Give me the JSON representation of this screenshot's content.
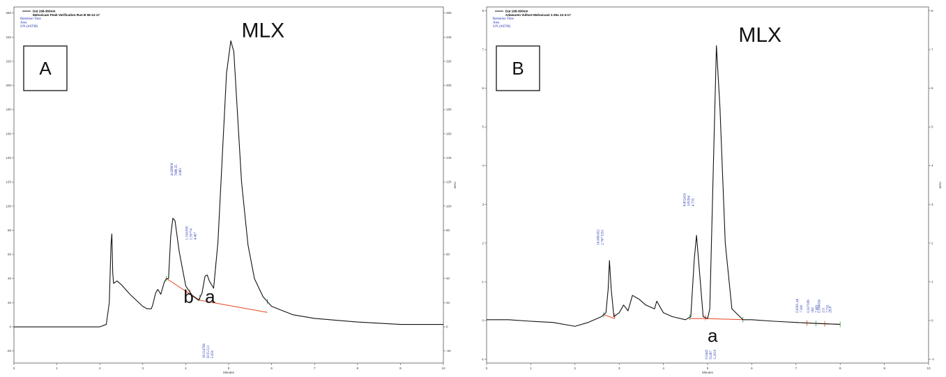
{
  "chart_data": [
    {
      "type": "line",
      "panel_label": "A",
      "legend": {
        "lines": [
          "Dat 168-360nm",
          "Meloxicam Peak Verification Run B 06-12-17"
        ],
        "sub": [
          "Retention Time",
          "Area",
          "S/N (ASTM)"
        ]
      },
      "xlabel": "Minutes",
      "ylabel": "mAU",
      "xlim": [
        0,
        10
      ],
      "ylim": [
        -30,
        265
      ],
      "xticks": [
        "0",
        "1",
        "2",
        "3",
        "4",
        "5",
        "6",
        "7",
        "8",
        "9",
        "10"
      ],
      "yticks": [
        "-20",
        "0",
        "20",
        "40",
        "60",
        "80",
        "100",
        "120",
        "140",
        "160",
        "180",
        "200",
        "220",
        "240",
        "260"
      ],
      "series": [
        {
          "values": [
            [
              0,
              0
            ],
            [
              1,
              0
            ],
            [
              2,
              0
            ],
            [
              2.15,
              2
            ],
            [
              2.22,
              20
            ],
            [
              2.26,
              68
            ],
            [
              2.28,
              77
            ],
            [
              2.3,
              45
            ],
            [
              2.32,
              36
            ],
            [
              2.4,
              38
            ],
            [
              2.5,
              35
            ],
            [
              2.7,
              27
            ],
            [
              3.0,
              17
            ],
            [
              3.1,
              15
            ],
            [
              3.2,
              15
            ],
            [
              3.23,
              18
            ],
            [
              3.3,
              28
            ],
            [
              3.35,
              31
            ],
            [
              3.42,
              27
            ],
            [
              3.5,
              37
            ],
            [
              3.55,
              40
            ],
            [
              3.6,
              40
            ],
            [
              3.65,
              75
            ],
            [
              3.7,
              90
            ],
            [
              3.75,
              88
            ],
            [
              3.85,
              62
            ],
            [
              4.0,
              34
            ],
            [
              4.15,
              26
            ],
            [
              4.3,
              22
            ],
            [
              4.38,
              28
            ],
            [
              4.45,
              42
            ],
            [
              4.5,
              43
            ],
            [
              4.55,
              38
            ],
            [
              4.65,
              32
            ],
            [
              4.75,
              70
            ],
            [
              4.85,
              140
            ],
            [
              4.95,
              210
            ],
            [
              5.05,
              237
            ],
            [
              5.12,
              228
            ],
            [
              5.2,
              180
            ],
            [
              5.3,
              120
            ],
            [
              5.45,
              68
            ],
            [
              5.6,
              40
            ],
            [
              5.8,
              25
            ],
            [
              6.0,
              17
            ],
            [
              6.5,
              10
            ],
            [
              7.0,
              7
            ],
            [
              8.0,
              4
            ],
            [
              9.0,
              2
            ],
            [
              10.0,
              2
            ]
          ]
        }
      ],
      "baselines": [
        [
          [
            3.55,
            40
          ],
          [
            4.33,
            22
          ]
        ],
        [
          [
            4.33,
            22
          ],
          [
            5.9,
            12
          ]
        ]
      ],
      "markers": [
        3.55,
        4.1,
        4.33,
        4.7,
        5.9
      ],
      "peak_labels": [
        {
          "x": 3.7,
          "y": 125,
          "lines": [
            "4.028000",
            "7688.35",
            "3.683"
          ]
        },
        {
          "x": 4.05,
          "y": 72,
          "lines": [
            "1.316.830",
            "1.59774",
            "4.407"
          ]
        },
        {
          "x": 4.45,
          "y": -26,
          "lines": [
            "18.214760",
            "5015.511",
            "5.050"
          ]
        }
      ],
      "annotations": [
        {
          "text": "MLX",
          "x": 5.3,
          "y": 240
        },
        {
          "text": "b",
          "x": 3.95,
          "y": 20
        },
        {
          "text": "a",
          "x": 4.45,
          "y": 20
        }
      ]
    },
    {
      "type": "line",
      "panel_label": "B",
      "legend": {
        "lines": [
          "Dat 168-360nm",
          "Adawaren Vulture Meloxicam 1-30a 12-4-17"
        ],
        "sub": [
          "Retention Time",
          "Area",
          "S/N (ASTM)"
        ]
      },
      "xlabel": "Minutes",
      "ylabel": "mAU",
      "xlim": [
        0,
        10
      ],
      "ylim": [
        -1.1,
        8.1
      ],
      "xticks": [
        "0",
        "1",
        "2",
        "3",
        "4",
        "5",
        "6",
        "7",
        "8",
        "9",
        "10"
      ],
      "yticks": [
        "-1",
        "0",
        "1",
        "2",
        "3",
        "4",
        "5",
        "6",
        "7",
        "8"
      ],
      "series": [
        {
          "values": [
            [
              0,
              0.02
            ],
            [
              0.5,
              0.02
            ],
            [
              1.0,
              -0.02
            ],
            [
              1.5,
              -0.05
            ],
            [
              2.0,
              -0.15
            ],
            [
              2.3,
              -0.05
            ],
            [
              2.6,
              0.1
            ],
            [
              2.7,
              0.2
            ],
            [
              2.75,
              0.8
            ],
            [
              2.78,
              1.55
            ],
            [
              2.82,
              0.8
            ],
            [
              2.88,
              0.1
            ],
            [
              3.0,
              0.2
            ],
            [
              3.1,
              0.4
            ],
            [
              3.2,
              0.25
            ],
            [
              3.3,
              0.65
            ],
            [
              3.45,
              0.55
            ],
            [
              3.6,
              0.4
            ],
            [
              3.8,
              0.3
            ],
            [
              3.85,
              0.5
            ],
            [
              4.0,
              0.2
            ],
            [
              4.2,
              0.1
            ],
            [
              4.5,
              0.02
            ],
            [
              4.62,
              0.1
            ],
            [
              4.7,
              1.6
            ],
            [
              4.75,
              2.2
            ],
            [
              4.8,
              1.5
            ],
            [
              4.9,
              0.1
            ],
            [
              5.0,
              0.05
            ],
            [
              5.05,
              0.3
            ],
            [
              5.12,
              3.5
            ],
            [
              5.2,
              7.1
            ],
            [
              5.28,
              5.5
            ],
            [
              5.4,
              2.0
            ],
            [
              5.55,
              0.3
            ],
            [
              5.8,
              0.02
            ],
            [
              6.0,
              0.02
            ],
            [
              6.5,
              -0.02
            ],
            [
              7.0,
              -0.05
            ],
            [
              7.5,
              -0.08
            ],
            [
              8.0,
              -0.1
            ]
          ]
        }
      ],
      "baselines": [
        [
          [
            2.65,
            0.15
          ],
          [
            2.9,
            0.05
          ]
        ],
        [
          [
            4.6,
            0.05
          ],
          [
            4.95,
            0.05
          ]
        ],
        [
          [
            4.95,
            0.05
          ],
          [
            5.8,
            0.02
          ]
        ],
        [
          [
            7.0,
            -0.05
          ],
          [
            8.0,
            -0.1
          ]
        ]
      ],
      "markers": [
        2.65,
        2.9,
        4.6,
        4.95,
        5.8,
        7.25,
        7.45,
        7.65,
        8.0
      ],
      "peak_labels": [
        {
          "x": 2.55,
          "y": 1.95,
          "lines": [
            "16.049.652",
            "2.767 5251"
          ]
        },
        {
          "x": 4.5,
          "y": 2.95,
          "lines": [
            "8.652416",
            "109394",
            "4.733"
          ]
        },
        {
          "x": 5.0,
          "y": -1.0,
          "lines": [
            "0.0443",
            "91287",
            "5.2010"
          ]
        },
        {
          "x": 7.05,
          "y": 0.2,
          "lines": [
            "0.6301.44",
            "7.300"
          ]
        },
        {
          "x": 7.3,
          "y": 0.2,
          "lines": [
            "0.507189",
            "164",
            "7.483"
          ]
        },
        {
          "x": 7.55,
          "y": 0.2,
          "lines": [
            "0.584036",
            "211",
            "7.733"
          ]
        },
        {
          "x": 7.8,
          "y": 0.2,
          "lines": [
            "29.8"
          ]
        }
      ],
      "annotations": [
        {
          "text": "MLX",
          "x": 5.7,
          "y": 7.2
        },
        {
          "text": "a",
          "x": 5.0,
          "y": -0.55
        }
      ]
    }
  ]
}
